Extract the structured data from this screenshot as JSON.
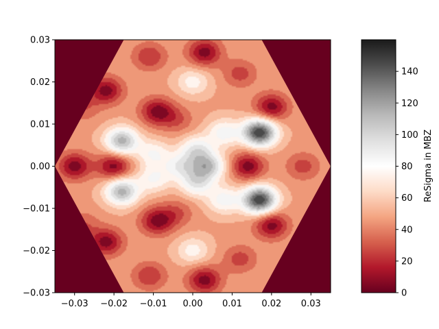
{
  "chart_data": {
    "type": "heatmap",
    "subtype": "filled-contour",
    "title": "",
    "xlabel": "",
    "ylabel": "",
    "xlim": [
      -0.035,
      0.035
    ],
    "ylim": [
      -0.03,
      0.03
    ],
    "x_ticks": [
      "−0.03",
      "−0.02",
      "−0.01",
      "0.00",
      "0.01",
      "0.02",
      "0.03"
    ],
    "y_ticks": [
      "−0.03",
      "−0.02",
      "−0.01",
      "0.00",
      "0.01",
      "0.02",
      "0.03"
    ],
    "x_tick_values": [
      -0.03,
      -0.02,
      -0.01,
      0.0,
      0.01,
      0.02,
      0.03
    ],
    "y_tick_values": [
      -0.03,
      -0.02,
      -0.01,
      0.0,
      0.01,
      0.02,
      0.03
    ],
    "region": "hexagon",
    "hexagon_vertices": [
      [
        -0.035,
        0.0
      ],
      [
        -0.0175,
        0.03
      ],
      [
        0.0175,
        0.03
      ],
      [
        0.035,
        0.0
      ],
      [
        0.0175,
        -0.03
      ],
      [
        -0.0175,
        -0.03
      ]
    ],
    "outside_value": 0,
    "colormap": "RdGy",
    "colorbar": {
      "label": "ReSigma in MBZ",
      "min": 0,
      "max": 160,
      "ticks": [
        "0",
        "20",
        "40",
        "60",
        "80",
        "100",
        "120",
        "140"
      ],
      "tick_values": [
        0,
        20,
        40,
        60,
        80,
        100,
        120,
        140
      ]
    },
    "features": [
      {
        "x": 0.017,
        "y": 0.008,
        "value": 150
      },
      {
        "x": 0.017,
        "y": -0.008,
        "value": 150
      },
      {
        "x": -0.018,
        "y": 0.006,
        "value": 115
      },
      {
        "x": -0.018,
        "y": -0.006,
        "value": 115
      },
      {
        "x": 0.004,
        "y": 0.0,
        "value": 105
      },
      {
        "x": 0.001,
        "y": 0.004,
        "value": 90
      },
      {
        "x": 0.001,
        "y": -0.004,
        "value": 90
      },
      {
        "x": 0.008,
        "y": 0.008,
        "value": 85
      },
      {
        "x": 0.008,
        "y": -0.008,
        "value": 85
      },
      {
        "x": -0.003,
        "y": 0.0,
        "value": 85
      },
      {
        "x": -0.01,
        "y": 0.003,
        "value": 80
      },
      {
        "x": -0.01,
        "y": -0.003,
        "value": 80
      },
      {
        "x": 0.0,
        "y": 0.02,
        "value": 75
      },
      {
        "x": 0.0,
        "y": -0.02,
        "value": 75
      },
      {
        "x": -0.03,
        "y": 0.0,
        "value": 5
      },
      {
        "x": -0.02,
        "y": 0.0,
        "value": 5
      },
      {
        "x": 0.014,
        "y": 0.0,
        "value": 5
      },
      {
        "x": -0.022,
        "y": 0.018,
        "value": 5
      },
      {
        "x": -0.022,
        "y": -0.018,
        "value": 5
      },
      {
        "x": 0.003,
        "y": 0.027,
        "value": 5
      },
      {
        "x": 0.003,
        "y": -0.027,
        "value": 5
      },
      {
        "x": -0.009,
        "y": 0.013,
        "value": 5
      },
      {
        "x": -0.009,
        "y": -0.013,
        "value": 5
      },
      {
        "x": 0.02,
        "y": 0.014,
        "value": 5
      },
      {
        "x": 0.02,
        "y": -0.014,
        "value": 5
      },
      {
        "x": 0.028,
        "y": 0.0,
        "value": 25
      },
      {
        "x": -0.011,
        "y": 0.026,
        "value": 20
      },
      {
        "x": -0.011,
        "y": -0.026,
        "value": 20
      },
      {
        "x": 0.012,
        "y": 0.022,
        "value": 25
      },
      {
        "x": 0.012,
        "y": -0.022,
        "value": 25
      },
      {
        "x": -0.004,
        "y": 0.011,
        "value": 30
      },
      {
        "x": -0.004,
        "y": -0.011,
        "value": 30
      },
      {
        "x": -0.028,
        "y": 0.014,
        "value": 30
      },
      {
        "x": -0.028,
        "y": -0.014,
        "value": 30
      }
    ]
  }
}
